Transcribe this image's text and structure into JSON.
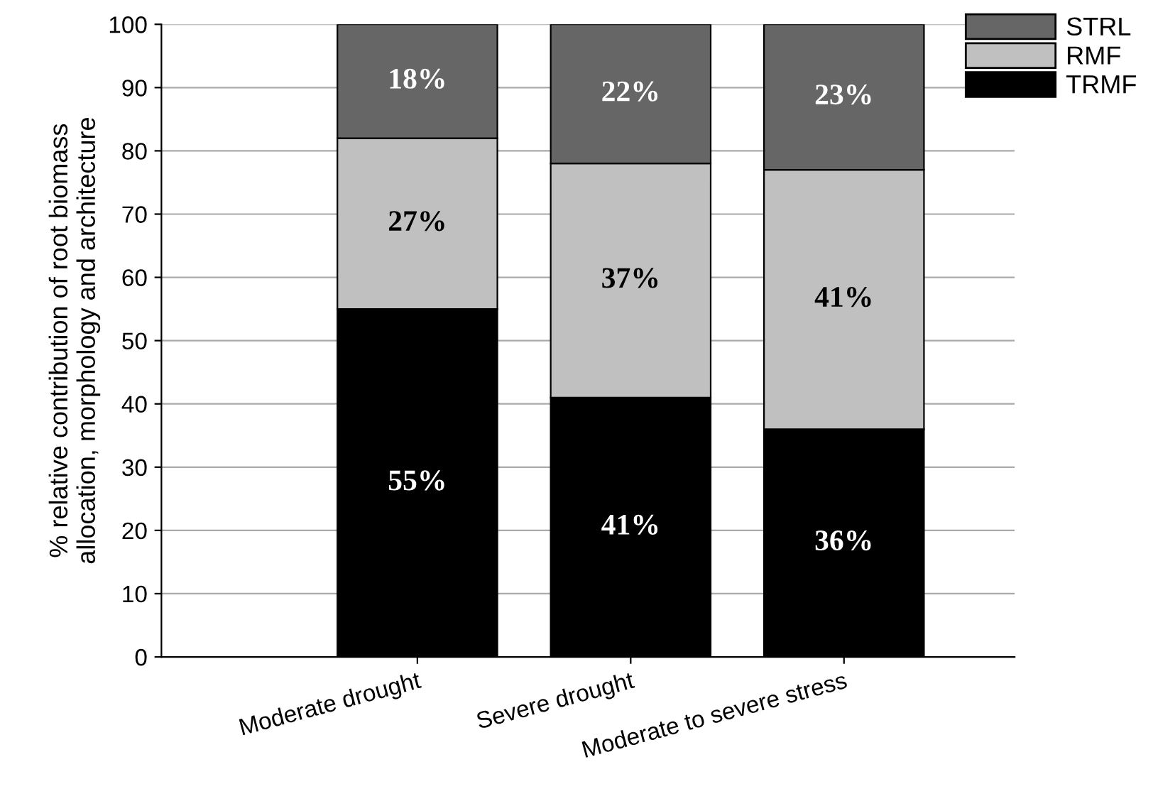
{
  "chart_data": {
    "type": "bar",
    "stacked": true,
    "ylabel": "% relative contribution of root biomass\nallocation, morphology and architecture",
    "categories": [
      "Moderate drought",
      "Severe drought",
      "Moderate to severe stress"
    ],
    "series": [
      {
        "name": "TRMF",
        "color": "#000000",
        "values": [
          55,
          41,
          36
        ],
        "value_labels": [
          "55%",
          "41%",
          "36%"
        ]
      },
      {
        "name": "RMF",
        "color": "#c0c0c0",
        "values": [
          27,
          37,
          41
        ],
        "value_labels": [
          "27%",
          "37%",
          "41%"
        ]
      },
      {
        "name": "STRL",
        "color": "#666666",
        "values": [
          18,
          22,
          23
        ],
        "value_labels": [
          "18%",
          "22%",
          "23%"
        ]
      }
    ],
    "ylim": [
      0,
      100
    ],
    "yticks": [
      0,
      10,
      20,
      30,
      40,
      50,
      60,
      70,
      80,
      90,
      100
    ],
    "grid": "y",
    "legend": "top right"
  }
}
